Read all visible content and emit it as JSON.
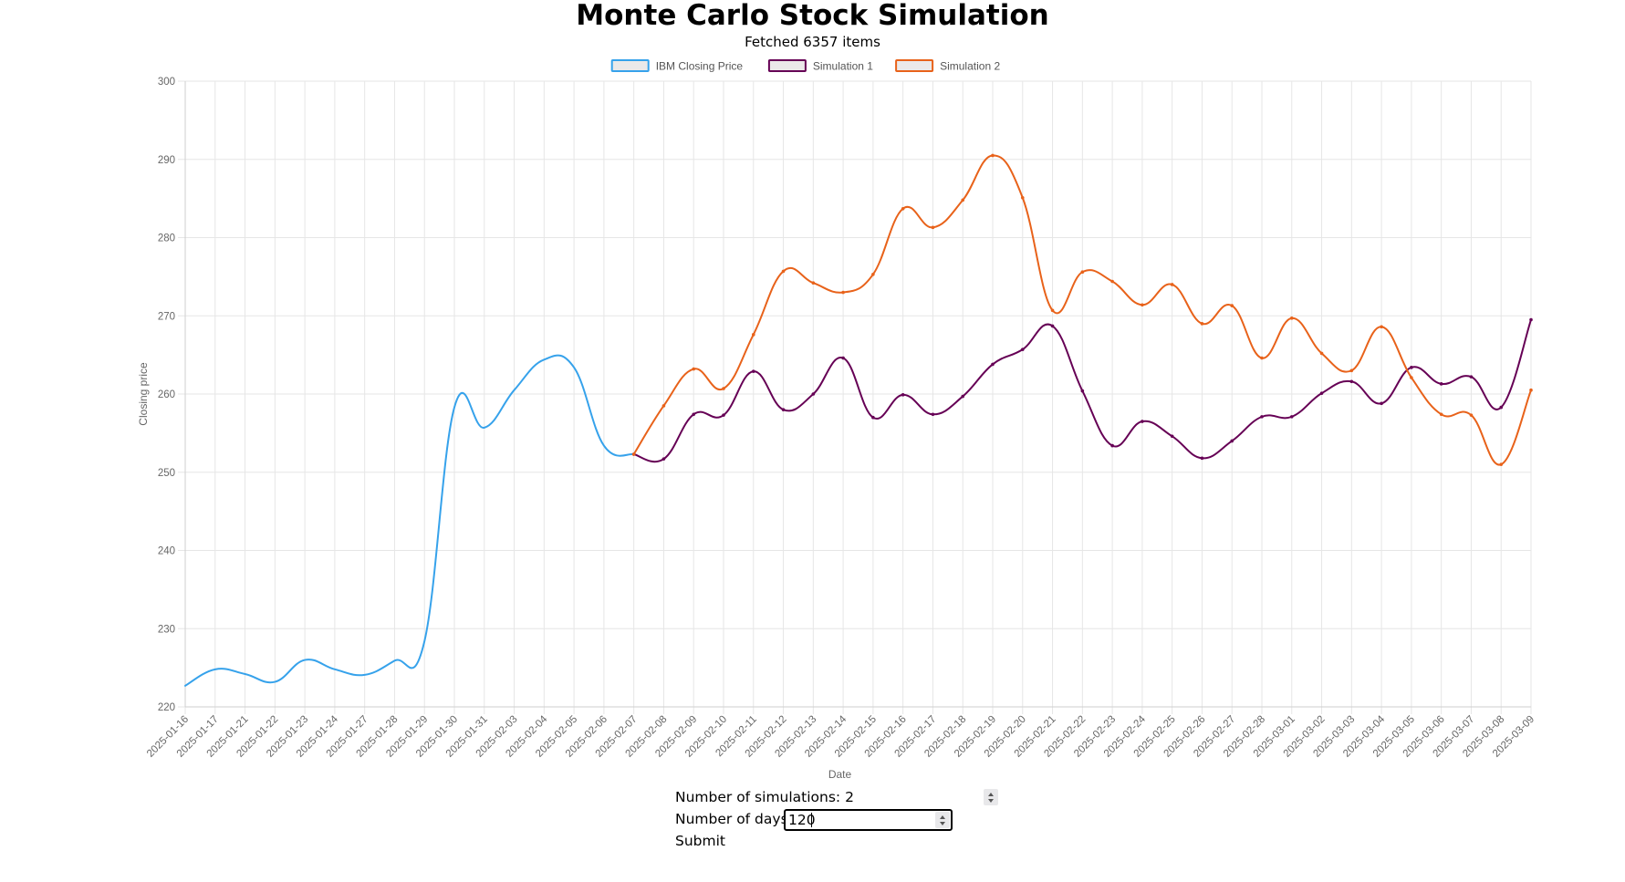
{
  "page": {
    "title": "Monte Carlo Stock Simulation",
    "subtitle": "Fetched 6357 items"
  },
  "form": {
    "simulations_label": "Number of simulations:",
    "simulations_value": "2",
    "days_label": "Number of days:",
    "days_value": "120",
    "submit_label": "Submit"
  },
  "chart_data": {
    "type": "line",
    "xlabel": "Date",
    "ylabel": "Closing price",
    "ylim": [
      220,
      300
    ],
    "yticks": [
      220,
      230,
      240,
      250,
      260,
      270,
      280,
      290,
      300
    ],
    "grid": true,
    "legend_position": "top",
    "categories": [
      "2025-01-16",
      "2025-01-17",
      "2025-01-21",
      "2025-01-22",
      "2025-01-23",
      "2025-01-24",
      "2025-01-27",
      "2025-01-28",
      "2025-01-29",
      "2025-01-30",
      "2025-01-31",
      "2025-02-03",
      "2025-02-04",
      "2025-02-05",
      "2025-02-06",
      "2025-02-07",
      "2025-02-08",
      "2025-02-09",
      "2025-02-10",
      "2025-02-11",
      "2025-02-12",
      "2025-02-13",
      "2025-02-14",
      "2025-02-15",
      "2025-02-16",
      "2025-02-17",
      "2025-02-18",
      "2025-02-19",
      "2025-02-20",
      "2025-02-21",
      "2025-02-22",
      "2025-02-23",
      "2025-02-24",
      "2025-02-25",
      "2025-02-26",
      "2025-02-27",
      "2025-02-28",
      "2025-03-01",
      "2025-03-02",
      "2025-03-03",
      "2025-03-04",
      "2025-03-05",
      "2025-03-06",
      "2025-03-07",
      "2025-03-08",
      "2025-03-09"
    ],
    "series": [
      {
        "name": "IBM Closing Price",
        "color": "#36a2eb",
        "points": false,
        "values": [
          222.7,
          224.8,
          224.2,
          223.2,
          226.0,
          224.8,
          224.1,
          225.9,
          228.4,
          258.3,
          255.7,
          260.5,
          264.4,
          263.4,
          253.4,
          252.3,
          null,
          null,
          null,
          null,
          null,
          null,
          null,
          null,
          null,
          null,
          null,
          null,
          null,
          null,
          null,
          null,
          null,
          null,
          null,
          null,
          null,
          null,
          null,
          null,
          null,
          null,
          null,
          null,
          null,
          null
        ]
      },
      {
        "name": "Simulation 1",
        "color": "#660055",
        "points": true,
        "values": [
          null,
          null,
          null,
          null,
          null,
          null,
          null,
          null,
          null,
          null,
          null,
          null,
          null,
          null,
          null,
          252.3,
          251.7,
          257.4,
          257.3,
          262.9,
          258.0,
          260.0,
          264.6,
          257.0,
          259.9,
          257.4,
          259.7,
          263.8,
          265.7,
          268.7,
          260.4,
          253.4,
          256.5,
          254.6,
          251.8,
          254.0,
          257.1,
          257.1,
          260.1,
          261.6,
          258.8,
          263.4,
          261.3,
          262.2,
          258.3,
          269.5
        ]
      },
      {
        "name": "Simulation 2",
        "color": "#e8621a",
        "points": true,
        "values": [
          null,
          null,
          null,
          null,
          null,
          null,
          null,
          null,
          null,
          null,
          null,
          null,
          null,
          null,
          null,
          252.3,
          258.5,
          263.2,
          260.7,
          267.6,
          275.7,
          274.2,
          273.0,
          275.3,
          283.7,
          281.3,
          284.8,
          290.5,
          285.1,
          270.7,
          275.6,
          274.4,
          271.4,
          274.0,
          269.0,
          271.3,
          264.6,
          269.7,
          265.2,
          263.0,
          268.6,
          262.1,
          257.4,
          257.3,
          251.0,
          260.5
        ]
      }
    ]
  }
}
